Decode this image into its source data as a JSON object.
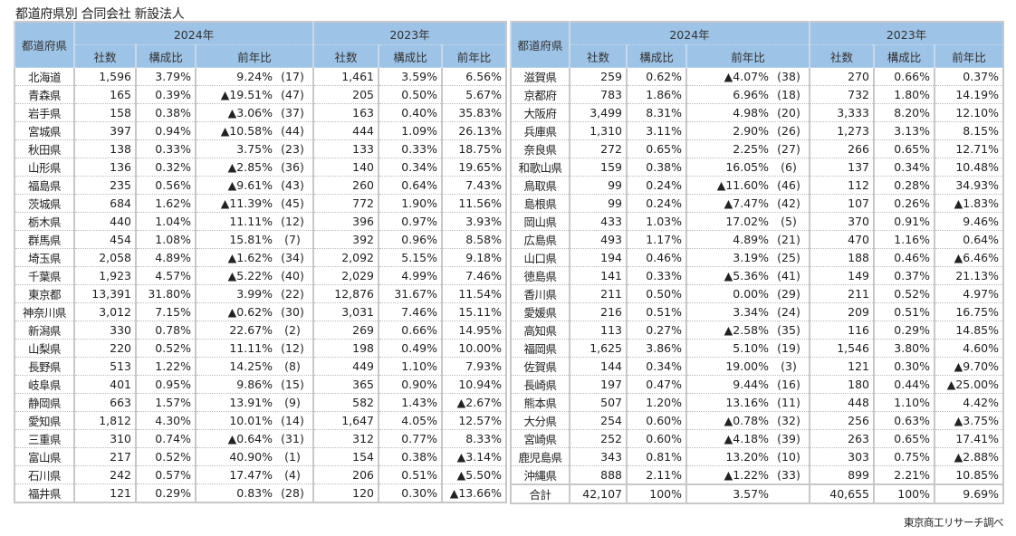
{
  "title": "都道府県別 合同会社 新設法人",
  "source": "東京商工リサーチ調べ",
  "headers": {
    "pref": "都道府県",
    "year_a": "2024年",
    "year_b": "2023年",
    "count": "社数",
    "share": "構成比",
    "yoy": "前年比"
  },
  "left_rows": [
    [
      "北海道",
      "1,596",
      "3.79%",
      "9.24%",
      "(17)",
      "1,461",
      "3.59%",
      "6.56%"
    ],
    [
      "青森県",
      "165",
      "0.39%",
      "▲19.51%",
      "(47)",
      "205",
      "0.50%",
      "5.67%"
    ],
    [
      "岩手県",
      "158",
      "0.38%",
      "▲3.06%",
      "(37)",
      "163",
      "0.40%",
      "35.83%"
    ],
    [
      "宮城県",
      "397",
      "0.94%",
      "▲10.58%",
      "(44)",
      "444",
      "1.09%",
      "26.13%"
    ],
    [
      "秋田県",
      "138",
      "0.33%",
      "3.75%",
      "(23)",
      "133",
      "0.33%",
      "18.75%"
    ],
    [
      "山形県",
      "136",
      "0.32%",
      "▲2.85%",
      "(36)",
      "140",
      "0.34%",
      "19.65%"
    ],
    [
      "福島県",
      "235",
      "0.56%",
      "▲9.61%",
      "(43)",
      "260",
      "0.64%",
      "7.43%"
    ],
    [
      "茨城県",
      "684",
      "1.62%",
      "▲11.39%",
      "(45)",
      "772",
      "1.90%",
      "11.56%"
    ],
    [
      "栃木県",
      "440",
      "1.04%",
      "11.11%",
      "(12)",
      "396",
      "0.97%",
      "3.93%"
    ],
    [
      "群馬県",
      "454",
      "1.08%",
      "15.81%",
      "(7)",
      "392",
      "0.96%",
      "8.58%"
    ],
    [
      "埼玉県",
      "2,058",
      "4.89%",
      "▲1.62%",
      "(34)",
      "2,092",
      "5.15%",
      "9.18%"
    ],
    [
      "千葉県",
      "1,923",
      "4.57%",
      "▲5.22%",
      "(40)",
      "2,029",
      "4.99%",
      "7.46%"
    ],
    [
      "東京都",
      "13,391",
      "31.80%",
      "3.99%",
      "(22)",
      "12,876",
      "31.67%",
      "11.54%"
    ],
    [
      "神奈川県",
      "3,012",
      "7.15%",
      "▲0.62%",
      "(30)",
      "3,031",
      "7.46%",
      "15.11%"
    ],
    [
      "新潟県",
      "330",
      "0.78%",
      "22.67%",
      "(2)",
      "269",
      "0.66%",
      "14.95%"
    ],
    [
      "山梨県",
      "220",
      "0.52%",
      "11.11%",
      "(12)",
      "198",
      "0.49%",
      "10.00%"
    ],
    [
      "長野県",
      "513",
      "1.22%",
      "14.25%",
      "(8)",
      "449",
      "1.10%",
      "7.93%"
    ],
    [
      "岐阜県",
      "401",
      "0.95%",
      "9.86%",
      "(15)",
      "365",
      "0.90%",
      "10.94%"
    ],
    [
      "静岡県",
      "663",
      "1.57%",
      "13.91%",
      "(9)",
      "582",
      "1.43%",
      "▲2.67%"
    ],
    [
      "愛知県",
      "1,812",
      "4.30%",
      "10.01%",
      "(14)",
      "1,647",
      "4.05%",
      "12.57%"
    ],
    [
      "三重県",
      "310",
      "0.74%",
      "▲0.64%",
      "(31)",
      "312",
      "0.77%",
      "8.33%"
    ],
    [
      "富山県",
      "217",
      "0.52%",
      "40.90%",
      "(1)",
      "154",
      "0.38%",
      "▲3.14%"
    ],
    [
      "石川県",
      "242",
      "0.57%",
      "17.47%",
      "(4)",
      "206",
      "0.51%",
      "▲5.50%"
    ],
    [
      "福井県",
      "121",
      "0.29%",
      "0.83%",
      "(28)",
      "120",
      "0.30%",
      "▲13.66%"
    ]
  ],
  "right_rows": [
    [
      "滋賀県",
      "259",
      "0.62%",
      "▲4.07%",
      "(38)",
      "270",
      "0.66%",
      "0.37%"
    ],
    [
      "京都府",
      "783",
      "1.86%",
      "6.96%",
      "(18)",
      "732",
      "1.80%",
      "14.19%"
    ],
    [
      "大阪府",
      "3,499",
      "8.31%",
      "4.98%",
      "(20)",
      "3,333",
      "8.20%",
      "12.10%"
    ],
    [
      "兵庫県",
      "1,310",
      "3.11%",
      "2.90%",
      "(26)",
      "1,273",
      "3.13%",
      "8.15%"
    ],
    [
      "奈良県",
      "272",
      "0.65%",
      "2.25%",
      "(27)",
      "266",
      "0.65%",
      "12.71%"
    ],
    [
      "和歌山県",
      "159",
      "0.38%",
      "16.05%",
      "(6)",
      "137",
      "0.34%",
      "10.48%"
    ],
    [
      "鳥取県",
      "99",
      "0.24%",
      "▲11.60%",
      "(46)",
      "112",
      "0.28%",
      "34.93%"
    ],
    [
      "島根県",
      "99",
      "0.24%",
      "▲7.47%",
      "(42)",
      "107",
      "0.26%",
      "▲1.83%"
    ],
    [
      "岡山県",
      "433",
      "1.03%",
      "17.02%",
      "(5)",
      "370",
      "0.91%",
      "9.46%"
    ],
    [
      "広島県",
      "493",
      "1.17%",
      "4.89%",
      "(21)",
      "470",
      "1.16%",
      "0.64%"
    ],
    [
      "山口県",
      "194",
      "0.46%",
      "3.19%",
      "(25)",
      "188",
      "0.46%",
      "▲6.46%"
    ],
    [
      "徳島県",
      "141",
      "0.33%",
      "▲5.36%",
      "(41)",
      "149",
      "0.37%",
      "21.13%"
    ],
    [
      "香川県",
      "211",
      "0.50%",
      "0.00%",
      "(29)",
      "211",
      "0.52%",
      "4.97%"
    ],
    [
      "愛媛県",
      "216",
      "0.51%",
      "3.34%",
      "(24)",
      "209",
      "0.51%",
      "16.75%"
    ],
    [
      "高知県",
      "113",
      "0.27%",
      "▲2.58%",
      "(35)",
      "116",
      "0.29%",
      "14.85%"
    ],
    [
      "福岡県",
      "1,625",
      "3.86%",
      "5.10%",
      "(19)",
      "1,546",
      "3.80%",
      "4.60%"
    ],
    [
      "佐賀県",
      "144",
      "0.34%",
      "19.00%",
      "(3)",
      "121",
      "0.30%",
      "▲9.70%"
    ],
    [
      "長崎県",
      "197",
      "0.47%",
      "9.44%",
      "(16)",
      "180",
      "0.44%",
      "▲25.00%"
    ],
    [
      "熊本県",
      "507",
      "1.20%",
      "13.16%",
      "(11)",
      "448",
      "1.10%",
      "4.42%"
    ],
    [
      "大分県",
      "254",
      "0.60%",
      "▲0.78%",
      "(32)",
      "256",
      "0.63%",
      "▲3.75%"
    ],
    [
      "宮崎県",
      "252",
      "0.60%",
      "▲4.18%",
      "(39)",
      "263",
      "0.65%",
      "17.41%"
    ],
    [
      "鹿児島県",
      "343",
      "0.81%",
      "13.20%",
      "(10)",
      "303",
      "0.75%",
      "▲2.88%"
    ],
    [
      "沖縄県",
      "888",
      "2.11%",
      "▲1.22%",
      "(33)",
      "899",
      "2.21%",
      "10.85%"
    ]
  ],
  "total_row": [
    "合計",
    "42,107",
    "100%",
    "3.57%",
    "",
    "40,655",
    "100%",
    "9.69%"
  ]
}
